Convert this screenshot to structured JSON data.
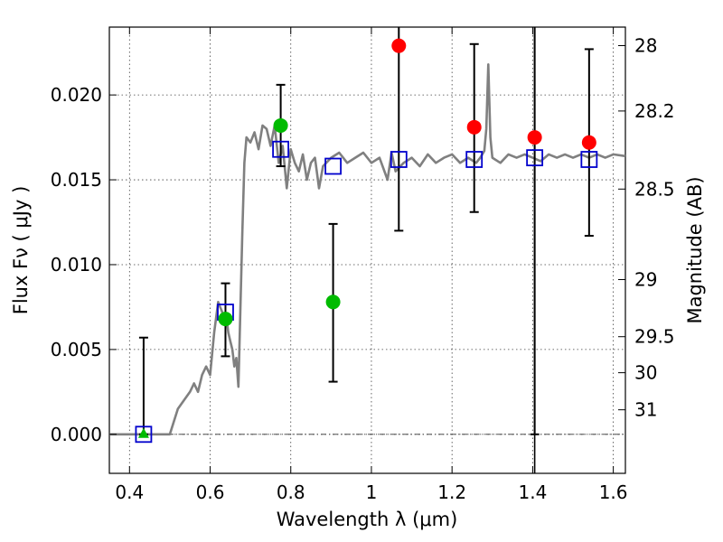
{
  "chart_data": {
    "type": "scatter",
    "xlabel": "Wavelength  λ (μm)",
    "ylabel": "Flux  Fν  ( μJy )",
    "y2label": "Magnitude (AB)",
    "xlim": [
      0.35,
      1.63
    ],
    "ylim": [
      -0.0023,
      0.024
    ],
    "grid": true,
    "x_ticks": [
      "0.4",
      "0.6",
      "0.8",
      "1",
      "1.2",
      "1.4",
      "1.6"
    ],
    "y_ticks": [
      "0.000",
      "0.005",
      "0.010",
      "0.015",
      "0.020"
    ],
    "mag_ticks": [
      "28",
      "28.2",
      "28.5",
      "29",
      "29.5",
      "30",
      "31"
    ],
    "vertical_line_x": 1.405,
    "zero_line": true,
    "colors": {
      "model": "#808080",
      "model_points": "#0000cc",
      "detections": "#00bb00",
      "nondetections": "#ff0000",
      "errorbars": "#000000"
    },
    "model_spectrum": {
      "x": [
        0.35,
        0.5,
        0.52,
        0.55,
        0.56,
        0.57,
        0.58,
        0.59,
        0.6,
        0.61,
        0.62,
        0.63,
        0.635,
        0.64,
        0.645,
        0.65,
        0.655,
        0.66,
        0.665,
        0.67,
        0.68,
        0.685,
        0.69,
        0.7,
        0.71,
        0.72,
        0.73,
        0.74,
        0.75,
        0.76,
        0.77,
        0.78,
        0.79,
        0.8,
        0.81,
        0.82,
        0.83,
        0.84,
        0.85,
        0.86,
        0.87,
        0.88,
        0.9,
        0.92,
        0.94,
        0.96,
        0.98,
        1.0,
        1.02,
        1.04,
        1.05,
        1.06,
        1.08,
        1.1,
        1.12,
        1.14,
        1.16,
        1.18,
        1.2,
        1.22,
        1.24,
        1.26,
        1.27,
        1.28,
        1.285,
        1.29,
        1.295,
        1.3,
        1.32,
        1.34,
        1.36,
        1.38,
        1.4,
        1.42,
        1.44,
        1.46,
        1.48,
        1.5,
        1.52,
        1.54,
        1.56,
        1.58,
        1.6,
        1.63
      ],
      "y": [
        0.0,
        0.0,
        0.0015,
        0.0025,
        0.003,
        0.0025,
        0.0035,
        0.004,
        0.0035,
        0.006,
        0.0078,
        0.0072,
        0.0065,
        0.007,
        0.006,
        0.0055,
        0.005,
        0.004,
        0.0045,
        0.0028,
        0.012,
        0.016,
        0.0175,
        0.0172,
        0.0178,
        0.0168,
        0.0182,
        0.018,
        0.017,
        0.0182,
        0.016,
        0.017,
        0.0145,
        0.0168,
        0.016,
        0.0155,
        0.0165,
        0.015,
        0.016,
        0.0163,
        0.0145,
        0.0158,
        0.0163,
        0.0166,
        0.016,
        0.0163,
        0.0166,
        0.016,
        0.0163,
        0.015,
        0.0166,
        0.0155,
        0.016,
        0.0163,
        0.0158,
        0.0165,
        0.016,
        0.0163,
        0.0165,
        0.016,
        0.0163,
        0.016,
        0.0163,
        0.0167,
        0.018,
        0.0218,
        0.0175,
        0.0163,
        0.016,
        0.0165,
        0.0163,
        0.0165,
        0.0163,
        0.0161,
        0.0165,
        0.0163,
        0.0165,
        0.0163,
        0.0165,
        0.0163,
        0.0165,
        0.0163,
        0.0165,
        0.0164
      ]
    },
    "model_points": {
      "x": [
        0.435,
        0.638,
        0.775,
        0.905,
        1.068,
        1.255,
        1.405,
        1.54
      ],
      "y": [
        0.0,
        0.0072,
        0.0168,
        0.0158,
        0.0162,
        0.0162,
        0.0163,
        0.0162
      ]
    },
    "detections": {
      "x": [
        0.638,
        0.775,
        0.905
      ],
      "y": [
        0.0068,
        0.0182,
        0.0078
      ],
      "err_low": [
        0.0046,
        0.0158,
        0.0031
      ],
      "err_high": [
        0.0089,
        0.0206,
        0.0124
      ]
    },
    "upper_limit": {
      "x": [
        0.435
      ],
      "y": [
        0.0
      ],
      "err_low": [
        0.0
      ],
      "err_high": [
        0.0057
      ]
    },
    "nondetections": {
      "x": [
        1.068,
        1.255,
        1.405,
        1.54
      ],
      "y": [
        0.0229,
        0.0181,
        0.0175,
        0.0172
      ],
      "err_low": [
        0.012,
        0.0131,
        0.0,
        0.0117
      ],
      "err_high": [
        0.024,
        0.023,
        0.024,
        0.0227
      ]
    }
  }
}
